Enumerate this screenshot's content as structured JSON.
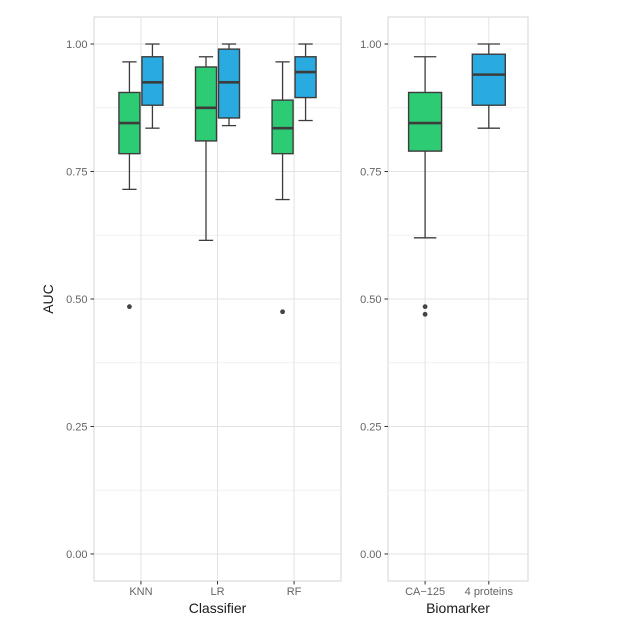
{
  "styles": {
    "background": "#ffffff",
    "panel_bg": "#ffffff",
    "panel_border": "#d4d4d4",
    "grid_major": "#e3e3e3",
    "grid_minor": "#f1f1f1",
    "box_border": "#3c3c3c",
    "outlier_color": "#444444",
    "tick_color": "#333333",
    "tick_label_color": "#646464",
    "axis_title_color": "#1a1a1a",
    "fill_green": "#2dcc74",
    "fill_blue": "#29abe2"
  },
  "chart_data": [
    {
      "type": "boxplot",
      "title": "",
      "xlabel": "Classifier",
      "ylabel": "AUC",
      "ylim": [
        -0.053,
        1.053
      ],
      "yticks": [
        1.0,
        0.75,
        0.5,
        0.25,
        0.0
      ],
      "ytick_labels": [
        "1.00",
        "0.75",
        "0.50",
        "0.25",
        "0.00"
      ],
      "yminor": [
        0.875,
        0.625,
        0.375,
        0.125
      ],
      "grid": "on",
      "legend_position": "none",
      "categories": [
        "KNN",
        "LR",
        "RF"
      ],
      "series": [
        {
          "name": "green-boxes",
          "fill": "#2dcc74",
          "boxes": [
            {
              "category": "KNN",
              "whisker_low": 0.715,
              "q1": 0.785,
              "median": 0.845,
              "q3": 0.905,
              "whisker_high": 0.965,
              "outliers": [
                0.485
              ]
            },
            {
              "category": "LR",
              "whisker_low": 0.615,
              "q1": 0.81,
              "median": 0.875,
              "q3": 0.955,
              "whisker_high": 0.975,
              "outliers": []
            },
            {
              "category": "RF",
              "whisker_low": 0.695,
              "q1": 0.785,
              "median": 0.835,
              "q3": 0.89,
              "whisker_high": 0.965,
              "outliers": [
                0.475
              ]
            }
          ]
        },
        {
          "name": "blue-boxes",
          "fill": "#29abe2",
          "boxes": [
            {
              "category": "KNN",
              "whisker_low": 0.835,
              "q1": 0.88,
              "median": 0.925,
              "q3": 0.975,
              "whisker_high": 1.0,
              "outliers": []
            },
            {
              "category": "LR",
              "whisker_low": 0.84,
              "q1": 0.855,
              "median": 0.925,
              "q3": 0.99,
              "whisker_high": 1.0,
              "outliers": []
            },
            {
              "category": "RF",
              "whisker_low": 0.85,
              "q1": 0.895,
              "median": 0.945,
              "q3": 0.975,
              "whisker_high": 1.0,
              "outliers": []
            }
          ]
        }
      ]
    },
    {
      "type": "boxplot",
      "title": "",
      "xlabel": "Biomarker",
      "ylabel": "",
      "ylim": [
        -0.053,
        1.053
      ],
      "yticks": [
        1.0,
        0.75,
        0.5,
        0.25,
        0.0
      ],
      "ytick_labels": [
        "1.00",
        "0.75",
        "0.50",
        "0.25",
        "0.00"
      ],
      "yminor": [
        0.875,
        0.625,
        0.375,
        0.125
      ],
      "grid": "on",
      "legend_position": "none",
      "categories": [
        "CA−125",
        "4 proteins"
      ],
      "series": [
        {
          "name": "green-boxes",
          "fill": "#2dcc74",
          "boxes": [
            {
              "category": "CA−125",
              "whisker_low": 0.62,
              "q1": 0.79,
              "median": 0.845,
              "q3": 0.905,
              "whisker_high": 0.975,
              "outliers": [
                0.485,
                0.47
              ]
            }
          ]
        },
        {
          "name": "blue-boxes",
          "fill": "#29abe2",
          "boxes": [
            {
              "category": "4 proteins",
              "whisker_low": 0.835,
              "q1": 0.88,
              "median": 0.94,
              "q3": 0.98,
              "whisker_high": 1.0,
              "outliers": []
            }
          ]
        }
      ]
    }
  ]
}
